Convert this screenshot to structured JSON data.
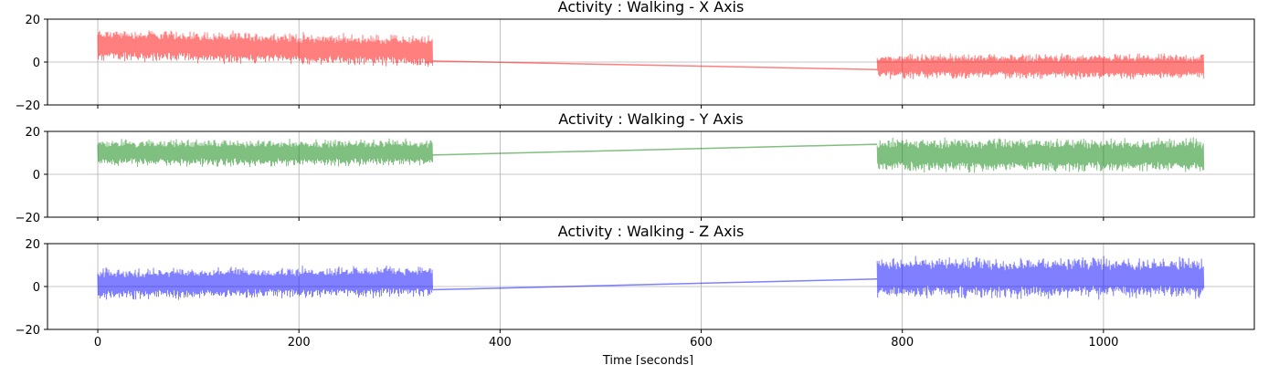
{
  "chart_data": {
    "type": "line",
    "xlabel": "Time [seconds]",
    "xlim": [
      -50,
      1150
    ],
    "xticks": [
      0,
      200,
      400,
      600,
      800,
      1000
    ],
    "x_tick_labels": [
      "0",
      "200",
      "400",
      "600",
      "800",
      "1000"
    ],
    "grid": true,
    "panels": [
      {
        "title": "Activity : Walking - X Axis",
        "color": "#ff0000",
        "ylim": [
          -20,
          20
        ],
        "yticks": [
          -20,
          0,
          20
        ],
        "y_tick_labels": [
          "−20",
          "0",
          "20"
        ],
        "segments": [
          {
            "x_start": 0,
            "x_end": 333,
            "center_start": 8,
            "center_end": 5,
            "amplitude": 7
          },
          {
            "x_start": 775,
            "x_end": 1100,
            "center_start": -2,
            "center_end": -2,
            "amplitude": 5.5
          }
        ],
        "connector": {
          "from": [
            333,
            0.5
          ],
          "to": [
            775,
            -3.5
          ]
        }
      },
      {
        "title": "Activity : Walking - Y Axis",
        "color": "#008000",
        "ylim": [
          -20,
          20
        ],
        "yticks": [
          -20,
          0,
          20
        ],
        "y_tick_labels": [
          "−20",
          "0",
          "20"
        ],
        "segments": [
          {
            "x_start": 0,
            "x_end": 333,
            "center_start": 10,
            "center_end": 10,
            "amplitude": 6
          },
          {
            "x_start": 775,
            "x_end": 1100,
            "center_start": 9,
            "center_end": 9,
            "amplitude": 7.5
          }
        ],
        "connector": {
          "from": [
            333,
            9
          ],
          "to": [
            775,
            14
          ]
        }
      },
      {
        "title": "Activity : Walking - Z Axis",
        "color": "#0000ff",
        "ylim": [
          -20,
          20
        ],
        "yticks": [
          -20,
          0,
          20
        ],
        "y_tick_labels": [
          "−20",
          "0",
          "20"
        ],
        "segments": [
          {
            "x_start": 0,
            "x_end": 333,
            "center_start": 1,
            "center_end": 2.5,
            "amplitude": 7
          },
          {
            "x_start": 775,
            "x_end": 1100,
            "center_start": 4,
            "center_end": 4,
            "amplitude": 9
          }
        ],
        "connector": {
          "from": [
            333,
            -1.5
          ],
          "to": [
            775,
            3.5
          ]
        }
      }
    ]
  }
}
